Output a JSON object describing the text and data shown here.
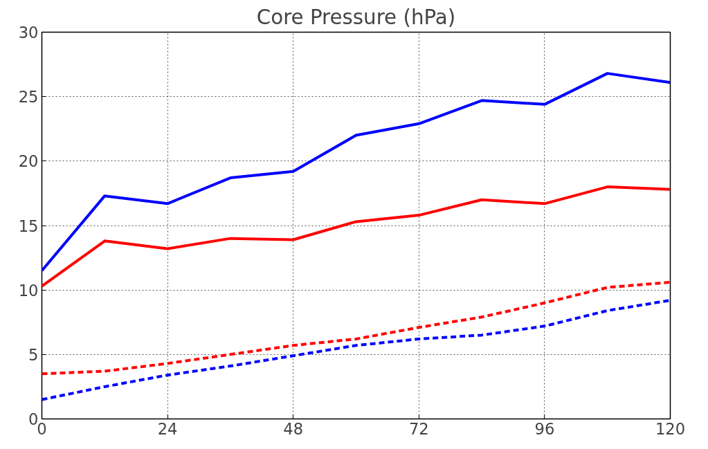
{
  "chart_data": {
    "type": "line",
    "title": "Core Pressure (hPa)",
    "x": [
      0,
      12,
      24,
      36,
      48,
      60,
      72,
      84,
      96,
      108,
      120
    ],
    "series": [
      {
        "color": "#0000ff",
        "line_style": "solid",
        "values": [
          11.5,
          17.3,
          16.7,
          18.7,
          19.2,
          22.0,
          22.9,
          24.7,
          24.4,
          26.8,
          26.1
        ]
      },
      {
        "color": "#ff0000",
        "line_style": "solid",
        "values": [
          10.3,
          13.8,
          13.2,
          14.0,
          13.9,
          15.3,
          15.8,
          17.0,
          16.7,
          18.0,
          17.8
        ]
      },
      {
        "color": "#ff0000",
        "line_style": "dashed",
        "values": [
          3.5,
          3.7,
          4.3,
          5.0,
          5.7,
          6.2,
          7.1,
          7.9,
          9.0,
          10.2,
          10.6
        ]
      },
      {
        "color": "#0000ff",
        "line_style": "dashed",
        "values": [
          1.5,
          2.5,
          3.4,
          4.1,
          4.9,
          5.7,
          6.2,
          6.5,
          7.2,
          8.4,
          9.2
        ]
      }
    ],
    "xlim": [
      0,
      120
    ],
    "xticks": [
      0,
      24,
      48,
      72,
      96,
      120
    ],
    "ylim": [
      0,
      30
    ],
    "yticks": [
      0,
      5,
      10,
      15,
      20,
      25,
      30
    ],
    "grid": true,
    "marker": "none"
  }
}
